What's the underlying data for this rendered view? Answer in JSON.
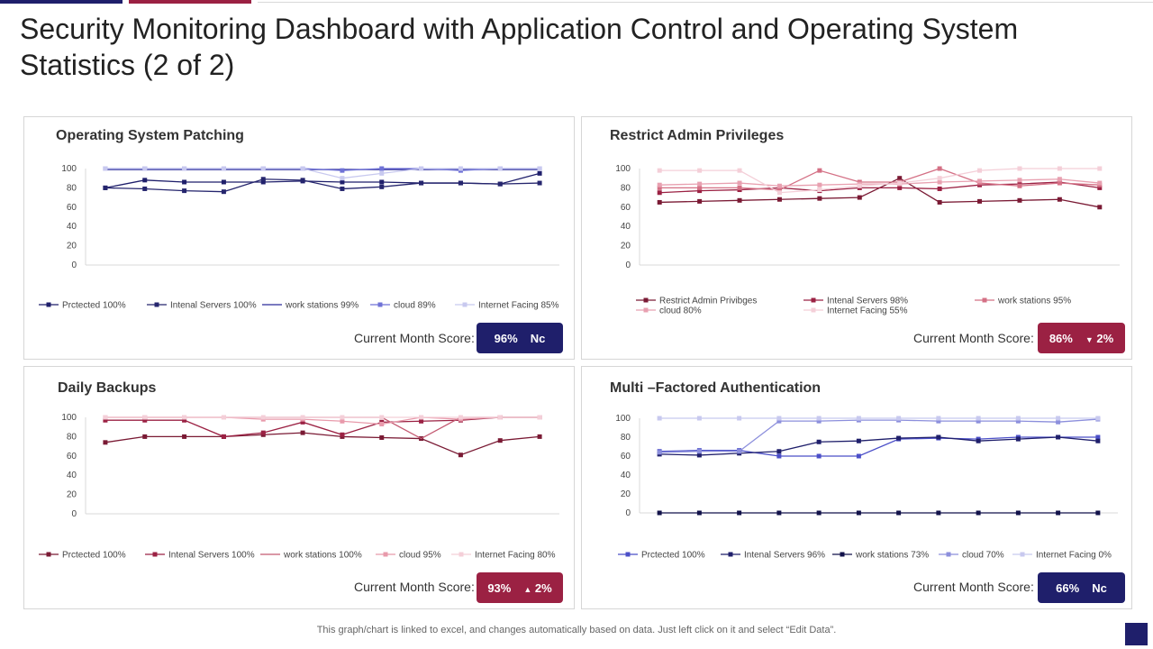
{
  "title": "Security Monitoring Dashboard with Application Control and Operating System Statistics (2 of 2)",
  "footer": "This graph/chart is linked to excel, and changes automatically based on data. Just left click on it and select “Edit Data”.",
  "score_label": "Current Month Score:",
  "colors": {
    "navy": "#1f1f6b",
    "crimson": "#9b2143"
  },
  "chart_data": [
    {
      "type": "line",
      "title": "Operating System Patching",
      "x": [
        1,
        2,
        3,
        4,
        5,
        6,
        7,
        8,
        9,
        10,
        11,
        12
      ],
      "ylim": [
        0,
        100
      ],
      "yticks": [
        0,
        20,
        40,
        60,
        80,
        100
      ],
      "series": [
        {
          "name": "Prctected 100%",
          "color": "#1f1f6b",
          "marker": true,
          "values": [
            80,
            88,
            86,
            86,
            86,
            87,
            86,
            86,
            85,
            85,
            84,
            95
          ]
        },
        {
          "name": "Intenal Servers 100%",
          "color": "#26266e",
          "marker": true,
          "values": [
            80,
            79,
            77,
            76,
            89,
            88,
            79,
            81,
            85,
            85,
            84,
            85
          ]
        },
        {
          "name": "work stations 99%",
          "color": "#2a2a9a",
          "marker": false,
          "values": [
            99,
            99,
            99,
            99,
            99,
            99,
            99,
            99,
            99,
            99,
            99,
            99
          ]
        },
        {
          "name": "cloud 89%",
          "color": "#6f72d6",
          "marker": true,
          "values": [
            100,
            100,
            100,
            100,
            100,
            100,
            98,
            100,
            100,
            98,
            100,
            100
          ]
        },
        {
          "name": "Internet Facing 85%",
          "color": "#c8c9ef",
          "marker": true,
          "values": [
            100,
            100,
            100,
            100,
            100,
            100,
            90,
            95,
            100,
            100,
            100,
            100
          ]
        }
      ],
      "score": {
        "value": "96%",
        "change": "Nc",
        "arrow": "",
        "color": "#1f1f6b"
      }
    },
    {
      "type": "line",
      "title": "Restrict Admin Privileges",
      "x": [
        1,
        2,
        3,
        4,
        5,
        6,
        7,
        8,
        9,
        10,
        11,
        12
      ],
      "ylim": [
        0,
        100
      ],
      "yticks": [
        0,
        20,
        40,
        60,
        80,
        100
      ],
      "series": [
        {
          "name": "Restrict Admin Privibges",
          "color": "#7a1a34",
          "marker": true,
          "values": [
            65,
            66,
            67,
            68,
            69,
            70,
            90,
            65,
            66,
            67,
            68,
            60
          ]
        },
        {
          "name": "Intenal Servers 98%",
          "color": "#9b2143",
          "marker": true,
          "values": [
            75,
            77,
            78,
            80,
            77,
            80,
            80,
            79,
            83,
            84,
            86,
            80
          ]
        },
        {
          "name": "work stations 95%",
          "color": "#d47085",
          "marker": true,
          "values": [
            80,
            80,
            80,
            78,
            98,
            86,
            86,
            100,
            85,
            82,
            85,
            83
          ]
        },
        {
          "name": "cloud 80%",
          "color": "#e8a0b0",
          "marker": true,
          "values": [
            83,
            84,
            85,
            82,
            83,
            84,
            84,
            86,
            87,
            88,
            89,
            85
          ]
        },
        {
          "name": "Internet Facing 55%",
          "color": "#f4cfd8",
          "marker": true,
          "values": [
            98,
            98,
            98,
            75,
            78,
            82,
            85,
            90,
            98,
            100,
            100,
            100
          ]
        }
      ],
      "score": {
        "value": "86%",
        "change": "2%",
        "arrow": "▼",
        "color": "#9b2143"
      }
    },
    {
      "type": "line",
      "title": "Daily Backups",
      "x": [
        1,
        2,
        3,
        4,
        5,
        6,
        7,
        8,
        9,
        10,
        11,
        12
      ],
      "ylim": [
        0,
        100
      ],
      "yticks": [
        0,
        20,
        40,
        60,
        80,
        100
      ],
      "series": [
        {
          "name": "Prctected 100%",
          "color": "#7a1a34",
          "marker": true,
          "values": [
            74,
            80,
            80,
            80,
            82,
            84,
            80,
            79,
            78,
            61,
            76,
            80
          ]
        },
        {
          "name": "Intenal Servers 100%",
          "color": "#9b2143",
          "marker": true,
          "values": [
            97,
            97,
            97,
            80,
            84,
            95,
            82,
            95,
            96,
            97,
            100,
            100
          ]
        },
        {
          "name": "work stations 100%",
          "color": "#c45a72",
          "marker": false,
          "values": [
            100,
            100,
            100,
            100,
            100,
            100,
            100,
            100,
            78,
            100,
            100,
            100
          ]
        },
        {
          "name": "cloud 95%",
          "color": "#e89aab",
          "marker": true,
          "values": [
            100,
            100,
            100,
            100,
            98,
            98,
            96,
            93,
            100,
            98,
            100,
            100
          ]
        },
        {
          "name": "Internet Facing 80%",
          "color": "#f4cfd8",
          "marker": true,
          "values": [
            100,
            100,
            100,
            100,
            100,
            100,
            100,
            100,
            100,
            100,
            100,
            100
          ]
        }
      ],
      "score": {
        "value": "93%",
        "change": "2%",
        "arrow": "▲",
        "color": "#9b2143"
      }
    },
    {
      "type": "line",
      "title": "Multi –Factored Authentication",
      "x": [
        1,
        2,
        3,
        4,
        5,
        6,
        7,
        8,
        9,
        10,
        11,
        12
      ],
      "ylim": [
        0,
        100
      ],
      "yticks": [
        0,
        20,
        40,
        60,
        80,
        100
      ],
      "series": [
        {
          "name": "Prctected 100%",
          "color": "#4b4fc8",
          "marker": true,
          "values": [
            65,
            66,
            66,
            60,
            60,
            60,
            78,
            79,
            78,
            80,
            80,
            80
          ]
        },
        {
          "name": "Intenal Servers 96%",
          "color": "#1f1f6b",
          "marker": true,
          "values": [
            62,
            61,
            63,
            65,
            75,
            76,
            79,
            80,
            76,
            78,
            80,
            76
          ]
        },
        {
          "name": "work stations 73%",
          "color": "#12124a",
          "marker": true,
          "values": [
            0,
            0,
            0,
            0,
            0,
            0,
            0,
            0,
            0,
            0,
            0,
            0
          ]
        },
        {
          "name": "cloud 70%",
          "color": "#8c8fdc",
          "marker": true,
          "values": [
            64,
            65,
            65,
            97,
            97,
            98,
            98,
            97,
            97,
            97,
            96,
            99
          ]
        },
        {
          "name": "Internet Facing 0%",
          "color": "#c8c9ef",
          "marker": true,
          "values": [
            100,
            100,
            100,
            100,
            100,
            100,
            100,
            100,
            100,
            100,
            100,
            100
          ]
        }
      ],
      "score": {
        "value": "66%",
        "change": "Nc",
        "arrow": "",
        "color": "#1f1f6b"
      }
    }
  ]
}
